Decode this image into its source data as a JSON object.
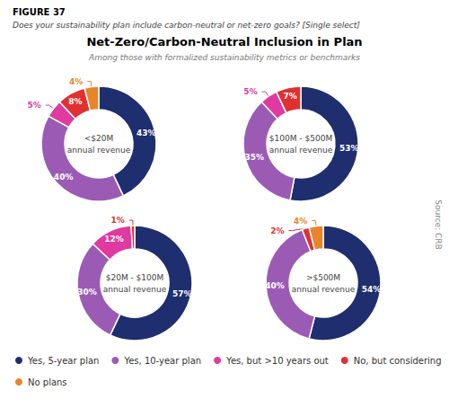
{
  "title": "Net-Zero/Carbon-Neutral Inclusion in Plan",
  "subtitle": "Among those with formalized sustainability metrics or benchmarks",
  "annotations": [
    "FIGURE 37",
    "Does your sustainability plan include carbon-neutral or net-zero goals? [Single select]",
    "Source: CRB"
  ],
  "legend": "bottom",
  "chart_data": [
    {
      "type": "pie",
      "title": "<$20M\nannual revenue",
      "categories": [
        "Yes, 5-year plan",
        "Yes, 10-year plan",
        "Yes, but >10 years out",
        "No, but considering",
        "No plans"
      ],
      "values": [
        43,
        40,
        5,
        8,
        4
      ],
      "value_labels": [
        "43%",
        "40%",
        "5%",
        "8%",
        "4%"
      ],
      "colors": [
        "#1e2e6e",
        "#9b5bb5",
        "#e0399f",
        "#e03030",
        "#e8852a"
      ],
      "data_labels": true
    },
    {
      "type": "pie",
      "title": "$100M - $500M\nannual revenue",
      "categories": [
        "Yes, 5-year plan",
        "Yes, 10-year plan",
        "Yes, but >10 years out",
        "No, but considering"
      ],
      "values": [
        53,
        35,
        5,
        7
      ],
      "value_labels": [
        "53%",
        "35%",
        "5%",
        "7%"
      ],
      "colors": [
        "#1e2e6e",
        "#9b5bb5",
        "#e0399f",
        "#e03030"
      ],
      "data_labels": true
    },
    {
      "type": "pie",
      "title": "$20M - $100M\nannual revenue",
      "categories": [
        "Yes, 5-year plan",
        "Yes, 10-year plan",
        "Yes, but >10 years out",
        "No, but considering"
      ],
      "values": [
        57,
        30,
        12,
        1
      ],
      "value_labels": [
        "57%",
        "30%",
        "12%",
        "1%"
      ],
      "colors": [
        "#1e2e6e",
        "#9b5bb5",
        "#e0399f",
        "#e03030"
      ],
      "data_labels": true
    },
    {
      "type": "pie",
      "title": ">$500M\nannual revenue",
      "categories": [
        "Yes, 5-year plan",
        "Yes, 10-year plan",
        "No, but considering",
        "No plans"
      ],
      "values": [
        54,
        40,
        2,
        4
      ],
      "value_labels": [
        "54%",
        "40%",
        "2%",
        "4%"
      ],
      "colors": [
        "#1e2e6e",
        "#9b5bb5",
        "#e03030",
        "#e8852a"
      ],
      "data_labels": true
    }
  ]
}
